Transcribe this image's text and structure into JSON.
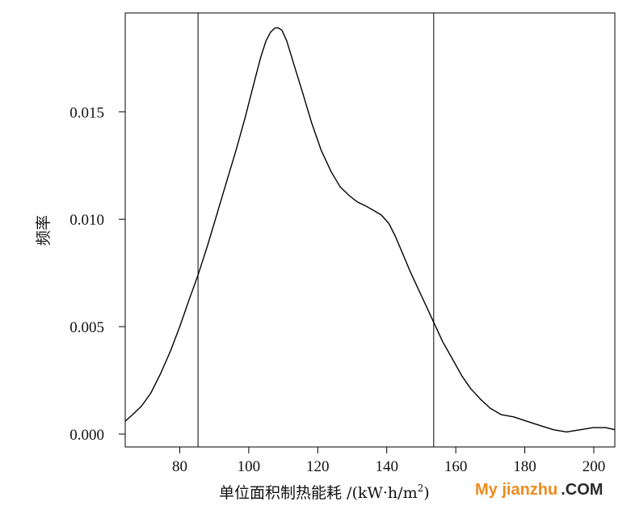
{
  "chart_data": {
    "type": "line",
    "xlabel": "单位面积制热能耗 /(kW·h/m²)",
    "xlabel_main": "单位面积制热能耗 /(kW·h/m",
    "xlabel_sup": "2",
    "xlabel_end": ")",
    "ylabel": "频率",
    "xlim": [
      64.2,
      206.1
    ],
    "ylim": [
      -0.0006,
      0.0196
    ],
    "x_ticks": [
      80,
      100,
      120,
      140,
      160,
      180,
      200
    ],
    "x_tick_labels": [
      "80",
      "100",
      "120",
      "140",
      "160",
      "180",
      "200"
    ],
    "y_ticks": [
      0.0,
      0.005,
      0.01,
      0.015
    ],
    "y_tick_labels": [
      "0.000",
      "0.005",
      "0.010",
      "0.015"
    ],
    "reference_lines_x": [
      85.3,
      153.6
    ],
    "grid": false,
    "legend": "none",
    "series": [
      {
        "x": [
          64.2,
          66.3,
          68.9,
          71.6,
          74.4,
          77.4,
          80.0,
          82.6,
          85.3,
          88.1,
          90.7,
          93.3,
          96.3,
          98.9,
          101.3,
          103.4,
          105.0,
          106.3,
          107.6,
          108.6,
          109.6,
          111.0,
          113.1,
          115.6,
          118.2,
          121.0,
          123.9,
          126.5,
          129.1,
          131.5,
          134.1,
          136.3,
          138.4,
          140.6,
          142.5,
          144.6,
          146.7,
          149.0,
          151.3,
          153.6,
          156.2,
          159.0,
          161.8,
          164.4,
          167.3,
          170.0,
          173.2,
          176.8,
          180.5,
          184.4,
          188.3,
          192.1,
          196.1,
          199.8,
          203.5,
          206.1
        ],
        "y": [
          0.0006,
          0.0009,
          0.0013,
          0.0019,
          0.0028,
          0.0039,
          0.005,
          0.0062,
          0.0074,
          0.0088,
          0.0102,
          0.0116,
          0.0132,
          0.0147,
          0.0162,
          0.0175,
          0.0183,
          0.0187,
          0.0189,
          0.0189,
          0.0188,
          0.0183,
          0.0172,
          0.0159,
          0.0145,
          0.0132,
          0.0122,
          0.0115,
          0.0111,
          0.0108,
          0.0106,
          0.0104,
          0.0102,
          0.0098,
          0.0092,
          0.0084,
          0.0076,
          0.0068,
          0.006,
          0.0052,
          0.0043,
          0.0035,
          0.0027,
          0.0021,
          0.0016,
          0.0012,
          0.0009,
          0.0008,
          0.0006,
          0.0004,
          0.0002,
          0.0001,
          0.0002,
          0.0003,
          0.0003,
          0.0002
        ]
      }
    ]
  },
  "watermark": {
    "main": "My jianzhu",
    "suffix": ".COM"
  }
}
